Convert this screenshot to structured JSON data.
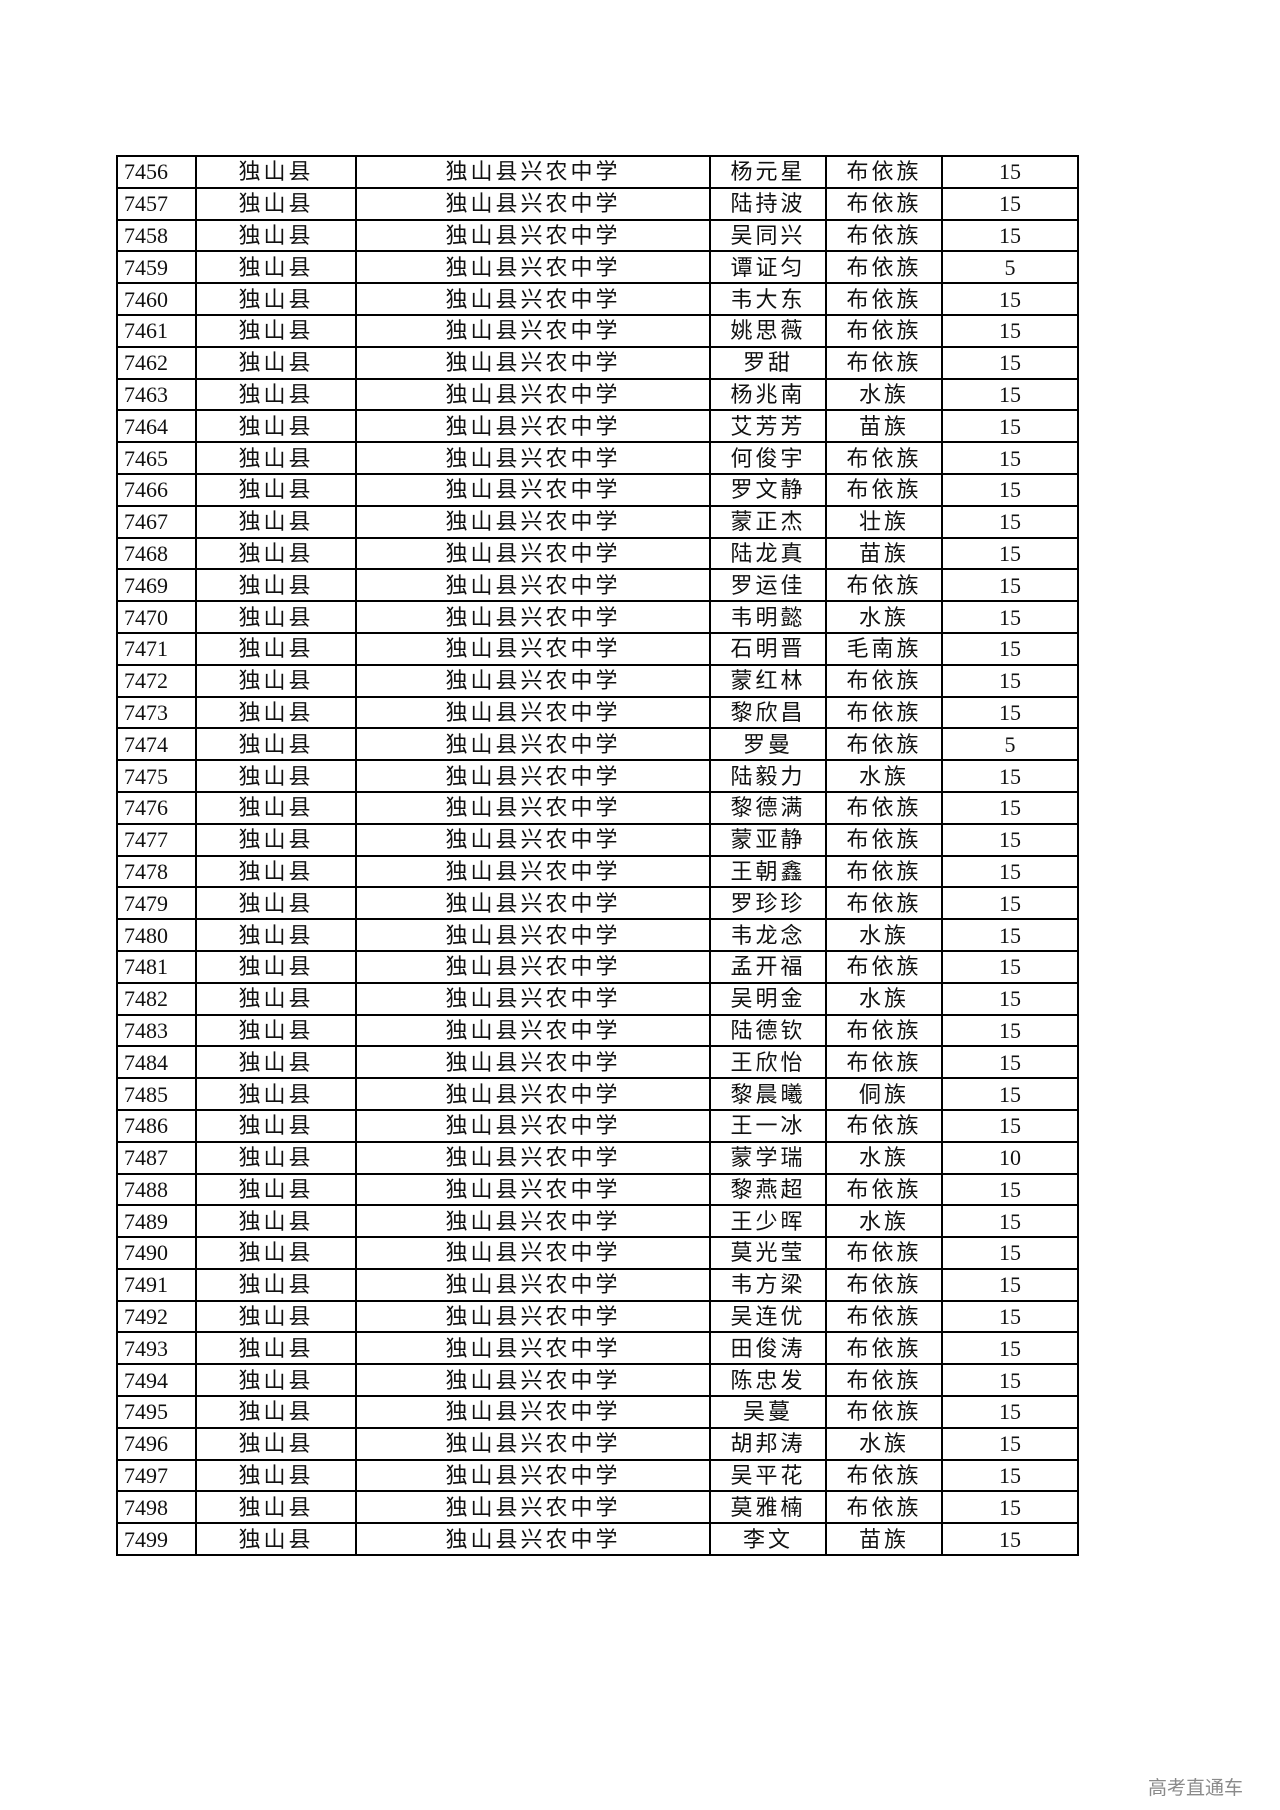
{
  "rows": [
    [
      "7456",
      "独山县",
      "独山县兴农中学",
      "杨元星",
      "布依族",
      "15"
    ],
    [
      "7457",
      "独山县",
      "独山县兴农中学",
      "陆持波",
      "布依族",
      "15"
    ],
    [
      "7458",
      "独山县",
      "独山县兴农中学",
      "吴同兴",
      "布依族",
      "15"
    ],
    [
      "7459",
      "独山县",
      "独山县兴农中学",
      "谭证匀",
      "布依族",
      "5"
    ],
    [
      "7460",
      "独山县",
      "独山县兴农中学",
      "韦大东",
      "布依族",
      "15"
    ],
    [
      "7461",
      "独山县",
      "独山县兴农中学",
      "姚思薇",
      "布依族",
      "15"
    ],
    [
      "7462",
      "独山县",
      "独山县兴农中学",
      "罗甜",
      "布依族",
      "15"
    ],
    [
      "7463",
      "独山县",
      "独山县兴农中学",
      "杨兆南",
      "水族",
      "15"
    ],
    [
      "7464",
      "独山县",
      "独山县兴农中学",
      "艾芳芳",
      "苗族",
      "15"
    ],
    [
      "7465",
      "独山县",
      "独山县兴农中学",
      "何俊宇",
      "布依族",
      "15"
    ],
    [
      "7466",
      "独山县",
      "独山县兴农中学",
      "罗文静",
      "布依族",
      "15"
    ],
    [
      "7467",
      "独山县",
      "独山县兴农中学",
      "蒙正杰",
      "壮族",
      "15"
    ],
    [
      "7468",
      "独山县",
      "独山县兴农中学",
      "陆龙真",
      "苗族",
      "15"
    ],
    [
      "7469",
      "独山县",
      "独山县兴农中学",
      "罗运佳",
      "布依族",
      "15"
    ],
    [
      "7470",
      "独山县",
      "独山县兴农中学",
      "韦明懿",
      "水族",
      "15"
    ],
    [
      "7471",
      "独山县",
      "独山县兴农中学",
      "石明晋",
      "毛南族",
      "15"
    ],
    [
      "7472",
      "独山县",
      "独山县兴农中学",
      "蒙红林",
      "布依族",
      "15"
    ],
    [
      "7473",
      "独山县",
      "独山县兴农中学",
      "黎欣昌",
      "布依族",
      "15"
    ],
    [
      "7474",
      "独山县",
      "独山县兴农中学",
      "罗曼",
      "布依族",
      "5"
    ],
    [
      "7475",
      "独山县",
      "独山县兴农中学",
      "陆毅力",
      "水族",
      "15"
    ],
    [
      "7476",
      "独山县",
      "独山县兴农中学",
      "黎德满",
      "布依族",
      "15"
    ],
    [
      "7477",
      "独山县",
      "独山县兴农中学",
      "蒙亚静",
      "布依族",
      "15"
    ],
    [
      "7478",
      "独山县",
      "独山县兴农中学",
      "王朝鑫",
      "布依族",
      "15"
    ],
    [
      "7479",
      "独山县",
      "独山县兴农中学",
      "罗珍珍",
      "布依族",
      "15"
    ],
    [
      "7480",
      "独山县",
      "独山县兴农中学",
      "韦龙念",
      "水族",
      "15"
    ],
    [
      "7481",
      "独山县",
      "独山县兴农中学",
      "孟开福",
      "布依族",
      "15"
    ],
    [
      "7482",
      "独山县",
      "独山县兴农中学",
      "吴明金",
      "水族",
      "15"
    ],
    [
      "7483",
      "独山县",
      "独山县兴农中学",
      "陆德钦",
      "布依族",
      "15"
    ],
    [
      "7484",
      "独山县",
      "独山县兴农中学",
      "王欣怡",
      "布依族",
      "15"
    ],
    [
      "7485",
      "独山县",
      "独山县兴农中学",
      "黎晨曦",
      "侗族",
      "15"
    ],
    [
      "7486",
      "独山县",
      "独山县兴农中学",
      "王一冰",
      "布依族",
      "15"
    ],
    [
      "7487",
      "独山县",
      "独山县兴农中学",
      "蒙学瑞",
      "水族",
      "10"
    ],
    [
      "7488",
      "独山县",
      "独山县兴农中学",
      "黎燕超",
      "布依族",
      "15"
    ],
    [
      "7489",
      "独山县",
      "独山县兴农中学",
      "王少晖",
      "水族",
      "15"
    ],
    [
      "7490",
      "独山县",
      "独山县兴农中学",
      "莫光莹",
      "布依族",
      "15"
    ],
    [
      "7491",
      "独山县",
      "独山县兴农中学",
      "韦方梁",
      "布依族",
      "15"
    ],
    [
      "7492",
      "独山县",
      "独山县兴农中学",
      "吴连优",
      "布依族",
      "15"
    ],
    [
      "7493",
      "独山县",
      "独山县兴农中学",
      "田俊涛",
      "布依族",
      "15"
    ],
    [
      "7494",
      "独山县",
      "独山县兴农中学",
      "陈忠发",
      "布依族",
      "15"
    ],
    [
      "7495",
      "独山县",
      "独山县兴农中学",
      "吴蔓",
      "布依族",
      "15"
    ],
    [
      "7496",
      "独山县",
      "独山县兴农中学",
      "胡邦涛",
      "水族",
      "15"
    ],
    [
      "7497",
      "独山县",
      "独山县兴农中学",
      "吴平花",
      "布依族",
      "15"
    ],
    [
      "7498",
      "独山县",
      "独山县兴农中学",
      "莫雅楠",
      "布依族",
      "15"
    ],
    [
      "7499",
      "独山县",
      "独山县兴农中学",
      "李文",
      "苗族",
      "15"
    ]
  ],
  "watermark": "高考直通车"
}
